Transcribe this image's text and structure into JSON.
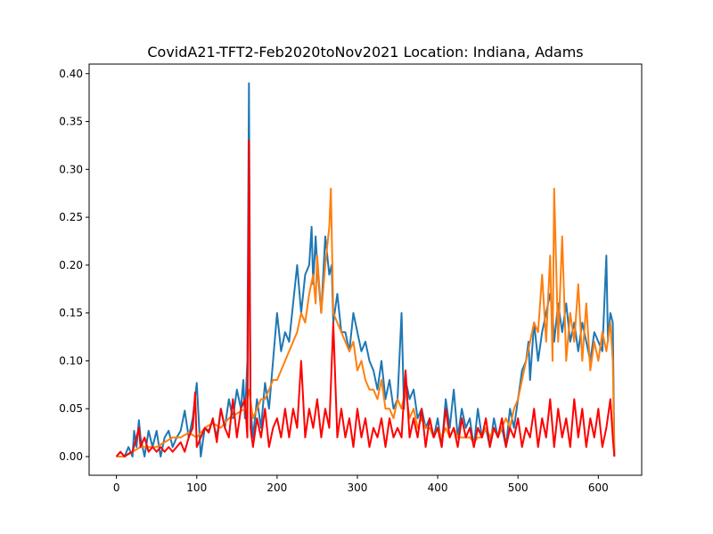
{
  "chart_data": {
    "type": "line",
    "title": "CovidA21-TFT2-Feb2020toNov2021 Location: Indiana, Adams",
    "xlabel": "",
    "ylabel": "",
    "xlim": [
      -34,
      654
    ],
    "ylim": [
      -0.0195,
      0.41
    ],
    "xticks": [
      0,
      100,
      200,
      300,
      400,
      500,
      600
    ],
    "yticks": [
      0.0,
      0.05,
      0.1,
      0.15,
      0.2,
      0.25,
      0.3,
      0.35,
      0.4
    ],
    "ytick_labels": [
      "0.00",
      "0.05",
      "0.10",
      "0.15",
      "0.20",
      "0.25",
      "0.30",
      "0.35",
      "0.40"
    ],
    "grid": false,
    "legend": "none",
    "series": [
      {
        "color": "#1f77b4",
        "x": [
          0,
          5,
          10,
          15,
          20,
          22,
          25,
          28,
          30,
          35,
          40,
          45,
          50,
          55,
          60,
          65,
          70,
          75,
          80,
          85,
          90,
          95,
          100,
          105,
          110,
          115,
          120,
          125,
          130,
          135,
          140,
          145,
          150,
          155,
          158,
          160,
          163,
          165,
          167,
          170,
          175,
          180,
          185,
          190,
          195,
          200,
          205,
          210,
          215,
          220,
          225,
          230,
          235,
          240,
          243,
          245,
          248,
          250,
          255,
          260,
          265,
          268,
          270,
          275,
          280,
          285,
          290,
          295,
          300,
          305,
          310,
          315,
          320,
          325,
          330,
          335,
          340,
          345,
          350,
          355,
          358,
          360,
          365,
          370,
          375,
          380,
          385,
          390,
          395,
          400,
          405,
          410,
          415,
          420,
          425,
          430,
          435,
          440,
          445,
          450,
          455,
          460,
          465,
          470,
          475,
          480,
          485,
          490,
          495,
          500,
          505,
          510,
          513,
          515,
          520,
          525,
          530,
          535,
          540,
          543,
          545,
          550,
          555,
          560,
          565,
          570,
          575,
          580,
          585,
          590,
          595,
          600,
          605,
          610,
          612,
          615,
          618,
          620
        ],
        "y": [
          0,
          0.005,
          0,
          0.01,
          0,
          0.027,
          0.01,
          0.038,
          0.02,
          0,
          0.027,
          0.01,
          0.027,
          0,
          0.02,
          0.027,
          0.01,
          0.02,
          0.027,
          0.048,
          0.02,
          0.04,
          0.077,
          0,
          0.03,
          0.027,
          0.038,
          0.02,
          0.05,
          0.03,
          0.06,
          0.04,
          0.07,
          0.05,
          0.08,
          0.04,
          0.1,
          0.39,
          0.05,
          0.02,
          0.06,
          0.03,
          0.077,
          0.05,
          0.1,
          0.15,
          0.11,
          0.13,
          0.12,
          0.16,
          0.2,
          0.15,
          0.19,
          0.2,
          0.24,
          0.18,
          0.23,
          0.2,
          0.15,
          0.23,
          0.19,
          0.2,
          0.14,
          0.17,
          0.13,
          0.13,
          0.11,
          0.15,
          0.13,
          0.11,
          0.12,
          0.1,
          0.09,
          0.07,
          0.1,
          0.06,
          0.08,
          0.05,
          0.06,
          0.15,
          0.05,
          0.08,
          0.06,
          0.07,
          0.04,
          0.05,
          0.03,
          0.04,
          0.02,
          0.04,
          0.01,
          0.06,
          0.03,
          0.07,
          0.02,
          0.05,
          0.03,
          0.04,
          0.01,
          0.05,
          0.02,
          0.03,
          0.01,
          0.04,
          0.02,
          0.03,
          0.01,
          0.05,
          0.03,
          0.06,
          0.09,
          0.1,
          0.12,
          0.08,
          0.14,
          0.1,
          0.13,
          0.15,
          0.17,
          0.15,
          0.12,
          0.16,
          0.13,
          0.16,
          0.12,
          0.14,
          0.11,
          0.14,
          0.12,
          0.1,
          0.13,
          0.12,
          0.11,
          0.21,
          0.12,
          0.15,
          0.14,
          0
        ]
      },
      {
        "color": "#ff7f0e",
        "x": [
          0,
          10,
          20,
          30,
          40,
          50,
          60,
          70,
          80,
          90,
          100,
          110,
          120,
          130,
          140,
          150,
          160,
          165,
          170,
          175,
          180,
          185,
          190,
          195,
          200,
          205,
          210,
          215,
          220,
          225,
          230,
          235,
          240,
          245,
          248,
          250,
          255,
          260,
          265,
          267,
          270,
          275,
          280,
          285,
          290,
          295,
          300,
          305,
          310,
          315,
          320,
          325,
          330,
          335,
          340,
          345,
          350,
          355,
          360,
          365,
          370,
          375,
          380,
          385,
          390,
          395,
          400,
          405,
          410,
          415,
          420,
          425,
          430,
          435,
          440,
          445,
          450,
          455,
          460,
          465,
          470,
          475,
          480,
          485,
          490,
          495,
          500,
          505,
          510,
          515,
          520,
          525,
          530,
          535,
          540,
          543,
          545,
          550,
          555,
          560,
          565,
          570,
          575,
          580,
          585,
          590,
          595,
          600,
          605,
          610,
          615,
          618,
          620
        ],
        "y": [
          0,
          0,
          0.005,
          0.01,
          0.01,
          0.01,
          0.015,
          0.02,
          0.02,
          0.025,
          0.02,
          0.03,
          0.035,
          0.03,
          0.04,
          0.045,
          0.05,
          0.07,
          0.04,
          0.05,
          0.06,
          0.06,
          0.07,
          0.08,
          0.08,
          0.09,
          0.1,
          0.11,
          0.12,
          0.13,
          0.15,
          0.14,
          0.17,
          0.19,
          0.16,
          0.21,
          0.15,
          0.2,
          0.24,
          0.28,
          0.15,
          0.14,
          0.13,
          0.12,
          0.11,
          0.12,
          0.09,
          0.1,
          0.08,
          0.07,
          0.07,
          0.06,
          0.08,
          0.05,
          0.05,
          0.04,
          0.06,
          0.05,
          0.07,
          0.04,
          0.05,
          0.03,
          0.04,
          0.03,
          0.03,
          0.02,
          0.03,
          0.02,
          0.03,
          0.02,
          0.03,
          0.02,
          0.02,
          0.02,
          0.02,
          0.015,
          0.02,
          0.02,
          0.03,
          0.02,
          0.03,
          0.02,
          0.03,
          0.04,
          0.03,
          0.05,
          0.06,
          0.08,
          0.1,
          0.12,
          0.14,
          0.13,
          0.19,
          0.12,
          0.21,
          0.1,
          0.28,
          0.12,
          0.23,
          0.1,
          0.15,
          0.12,
          0.18,
          0.1,
          0.16,
          0.09,
          0.12,
          0.1,
          0.13,
          0.11,
          0.14,
          0.1,
          0
        ]
      },
      {
        "color": "#ff0000",
        "x": [
          0,
          5,
          10,
          15,
          20,
          25,
          28,
          30,
          35,
          40,
          45,
          50,
          55,
          60,
          65,
          70,
          75,
          80,
          85,
          90,
          95,
          98,
          100,
          105,
          110,
          115,
          120,
          125,
          130,
          135,
          140,
          145,
          150,
          155,
          160,
          163,
          165,
          167,
          170,
          175,
          180,
          185,
          190,
          195,
          200,
          205,
          210,
          215,
          220,
          225,
          230,
          235,
          240,
          245,
          250,
          255,
          260,
          265,
          270,
          275,
          280,
          285,
          290,
          295,
          300,
          305,
          310,
          315,
          320,
          325,
          330,
          335,
          340,
          345,
          350,
          355,
          360,
          365,
          370,
          375,
          380,
          385,
          390,
          395,
          400,
          405,
          410,
          415,
          420,
          425,
          430,
          435,
          440,
          445,
          450,
          455,
          460,
          465,
          470,
          475,
          480,
          485,
          490,
          495,
          500,
          505,
          510,
          515,
          520,
          525,
          530,
          535,
          540,
          545,
          550,
          555,
          560,
          565,
          570,
          575,
          580,
          585,
          590,
          595,
          600,
          605,
          610,
          615,
          618,
          620
        ],
        "y": [
          0,
          0.005,
          0,
          0.003,
          0.005,
          0.02,
          0.03,
          0.01,
          0.02,
          0.005,
          0.01,
          0.005,
          0.01,
          0.005,
          0.01,
          0.005,
          0.01,
          0.015,
          0.005,
          0.02,
          0.03,
          0.067,
          0.01,
          0.02,
          0.03,
          0.025,
          0.04,
          0.015,
          0.05,
          0.03,
          0.02,
          0.06,
          0.02,
          0.05,
          0.06,
          0.02,
          0.33,
          0.03,
          0.01,
          0.04,
          0.02,
          0.05,
          0.01,
          0.03,
          0.04,
          0.02,
          0.05,
          0.02,
          0.05,
          0.03,
          0.1,
          0.02,
          0.05,
          0.03,
          0.06,
          0.02,
          0.05,
          0.03,
          0.14,
          0.02,
          0.05,
          0.02,
          0.04,
          0.01,
          0.05,
          0.02,
          0.04,
          0.01,
          0.03,
          0.02,
          0.04,
          0.01,
          0.04,
          0.02,
          0.03,
          0.02,
          0.09,
          0.02,
          0.04,
          0.02,
          0.05,
          0.01,
          0.04,
          0.02,
          0.03,
          0.01,
          0.05,
          0.02,
          0.03,
          0.01,
          0.04,
          0.02,
          0.03,
          0.01,
          0.03,
          0.02,
          0.04,
          0.01,
          0.03,
          0.02,
          0.04,
          0.01,
          0.03,
          0.02,
          0.04,
          0.01,
          0.03,
          0.02,
          0.05,
          0.01,
          0.04,
          0.02,
          0.06,
          0.01,
          0.05,
          0.02,
          0.04,
          0.01,
          0.06,
          0.02,
          0.05,
          0.01,
          0.04,
          0.02,
          0.05,
          0.01,
          0.03,
          0.06,
          0.02,
          0
        ]
      }
    ]
  }
}
